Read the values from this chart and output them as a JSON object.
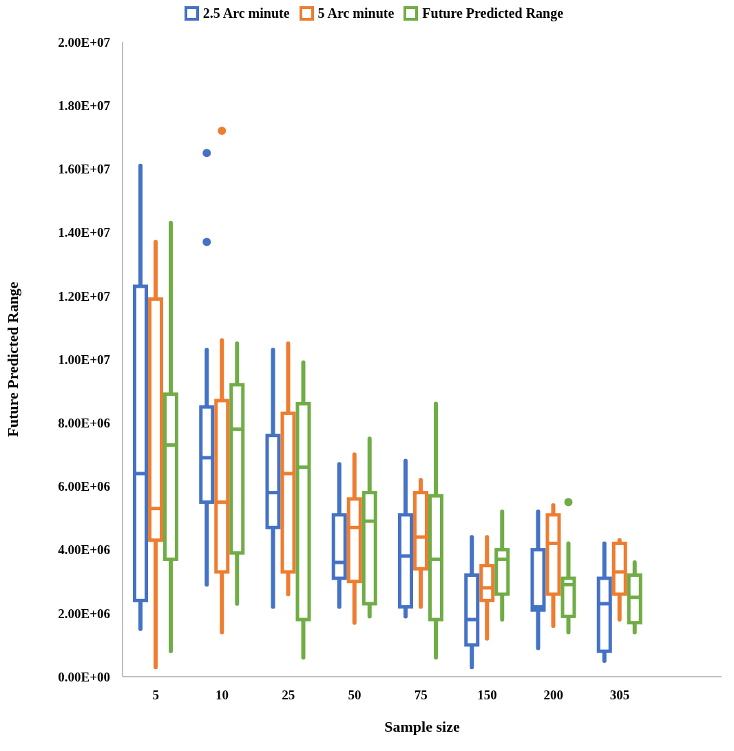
{
  "chart_data": {
    "type": "box",
    "xlabel": "Sample size",
    "ylabel": "Future Predicted Range",
    "categories": [
      "5",
      "10",
      "25",
      "50",
      "75",
      "150",
      "200",
      "305"
    ],
    "ylim": [
      0,
      20000000
    ],
    "yticks": [
      {
        "value": 0,
        "label": "0.00E+00"
      },
      {
        "value": 2000000,
        "label": "2.00E+06"
      },
      {
        "value": 4000000,
        "label": "4.00E+06"
      },
      {
        "value": 6000000,
        "label": "6.00E+06"
      },
      {
        "value": 8000000,
        "label": "8.00E+06"
      },
      {
        "value": 10000000,
        "label": "1.00E+07"
      },
      {
        "value": 12000000,
        "label": "1.20E+07"
      },
      {
        "value": 14000000,
        "label": "1.40E+07"
      },
      {
        "value": 16000000,
        "label": "1.60E+07"
      },
      {
        "value": 18000000,
        "label": "1.80E+07"
      },
      {
        "value": 20000000,
        "label": "2.00E+07"
      }
    ],
    "grid": false,
    "legend": "top",
    "series": [
      {
        "name": "2.5 Arc minute",
        "color": "#4472c4",
        "boxes": [
          {
            "low": 1500000,
            "q1": 2400000,
            "median": 6400000,
            "q3": 12300000,
            "high": 16100000
          },
          {
            "low": 2900000,
            "q1": 5500000,
            "median": 6900000,
            "q3": 8500000,
            "high": 10300000,
            "outliers": [
              16500000,
              13700000
            ]
          },
          {
            "low": 2200000,
            "q1": 4700000,
            "median": 5800000,
            "q3": 7600000,
            "high": 10300000
          },
          {
            "low": 2200000,
            "q1": 3100000,
            "median": 3600000,
            "q3": 5100000,
            "high": 6700000
          },
          {
            "low": 1900000,
            "q1": 2200000,
            "median": 3800000,
            "q3": 5100000,
            "high": 6800000
          },
          {
            "low": 300000,
            "q1": 1000000,
            "median": 1800000,
            "q3": 3200000,
            "high": 4400000
          },
          {
            "low": 900000,
            "q1": 2100000,
            "median": 2200000,
            "q3": 4000000,
            "high": 5200000
          },
          {
            "low": 500000,
            "q1": 800000,
            "median": 2300000,
            "q3": 3100000,
            "high": 4200000
          }
        ]
      },
      {
        "name": "5 Arc minute",
        "color": "#ed7d31",
        "boxes": [
          {
            "low": 300000,
            "q1": 4300000,
            "median": 5300000,
            "q3": 11900000,
            "high": 13700000
          },
          {
            "low": 1400000,
            "q1": 3300000,
            "median": 5500000,
            "q3": 8700000,
            "high": 10600000,
            "outliers": [
              17200000
            ]
          },
          {
            "low": 2600000,
            "q1": 3300000,
            "median": 6400000,
            "q3": 8300000,
            "high": 10500000
          },
          {
            "low": 1700000,
            "q1": 3000000,
            "median": 4700000,
            "q3": 5600000,
            "high": 7000000
          },
          {
            "low": 2200000,
            "q1": 3400000,
            "median": 4400000,
            "q3": 5800000,
            "high": 6200000
          },
          {
            "low": 1200000,
            "q1": 2400000,
            "median": 2800000,
            "q3": 3500000,
            "high": 4400000
          },
          {
            "low": 1600000,
            "q1": 2600000,
            "median": 4200000,
            "q3": 5100000,
            "high": 5400000
          },
          {
            "low": 1800000,
            "q1": 2600000,
            "median": 3300000,
            "q3": 4200000,
            "high": 4300000
          }
        ]
      },
      {
        "name": "Future Predicted Range",
        "color": "#70ad47",
        "boxes": [
          {
            "low": 800000,
            "q1": 3700000,
            "median": 7300000,
            "q3": 8900000,
            "high": 14300000
          },
          {
            "low": 2300000,
            "q1": 3900000,
            "median": 7800000,
            "q3": 9200000,
            "high": 10500000
          },
          {
            "low": 600000,
            "q1": 1800000,
            "median": 6600000,
            "q3": 8600000,
            "high": 9900000
          },
          {
            "low": 1900000,
            "q1": 2300000,
            "median": 4900000,
            "q3": 5800000,
            "high": 7500000
          },
          {
            "low": 600000,
            "q1": 1800000,
            "median": 3700000,
            "q3": 5700000,
            "high": 8600000
          },
          {
            "low": 1800000,
            "q1": 2600000,
            "median": 3700000,
            "q3": 4000000,
            "high": 5200000
          },
          {
            "low": 1400000,
            "q1": 1900000,
            "median": 2900000,
            "q3": 3100000,
            "high": 4200000,
            "outliers": [
              5500000
            ]
          },
          {
            "low": 1400000,
            "q1": 1700000,
            "median": 2500000,
            "q3": 3200000,
            "high": 3600000
          }
        ]
      }
    ]
  }
}
